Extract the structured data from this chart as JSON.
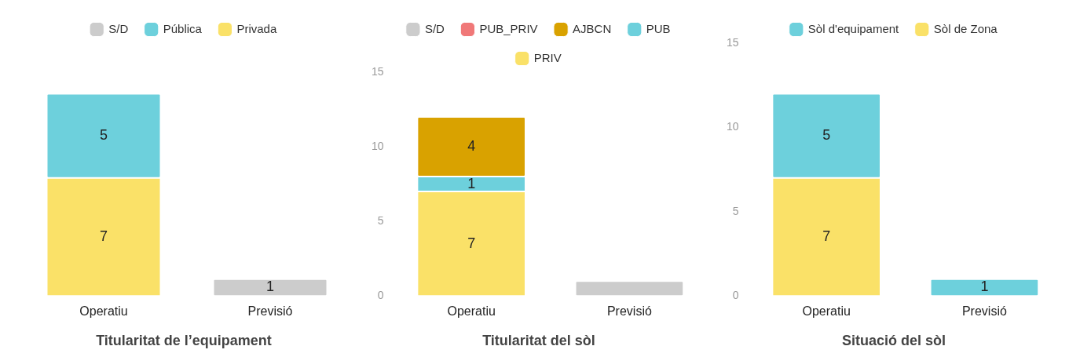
{
  "chart_data": [
    {
      "type": "bar",
      "title": "Titularitat de l’equipament",
      "categories": [
        "Operatiu",
        "Previsió"
      ],
      "stacked": true,
      "ylim": [
        0,
        15
      ],
      "tick_labels": "x",
      "grid": false,
      "legend": "top",
      "series": [
        {
          "name": "Privada",
          "color": "#fae168",
          "values": [
            7,
            null
          ],
          "value_labels": [
            "7",
            null
          ]
        },
        {
          "name": "Pública",
          "color": "#6dd0dc",
          "values": [
            5,
            null
          ],
          "value_labels": [
            "5",
            null
          ]
        },
        {
          "name": "S/D",
          "color": "#cccccc",
          "values": [
            null,
            1
          ],
          "value_labels": [
            null,
            "1"
          ]
        }
      ]
    },
    {
      "type": "bar",
      "title": "Titularitat del sòl",
      "categories": [
        "Operatiu",
        "Previsió"
      ],
      "stacked": true,
      "ylim": [
        0,
        15
      ],
      "yticks": [
        0,
        5,
        10,
        15
      ],
      "grid": false,
      "legend": "top",
      "series": [
        {
          "name": "PRIV",
          "color": "#fae168",
          "values": [
            7,
            null
          ],
          "value_labels": [
            "7",
            null
          ]
        },
        {
          "name": "PUB",
          "color": "#6dd0dc",
          "values": [
            1,
            null
          ],
          "value_labels": [
            "1",
            null
          ]
        },
        {
          "name": "AJBCN",
          "color": "#d9a200",
          "values": [
            4,
            null
          ],
          "value_labels": [
            "4",
            null
          ]
        },
        {
          "name": "PUB_PRIV",
          "color": "#f07878",
          "values": [
            null,
            null
          ]
        },
        {
          "name": "S/D",
          "color": "#cccccc",
          "values": [
            null,
            1
          ],
          "value_labels": [
            null,
            null
          ]
        }
      ]
    },
    {
      "type": "bar",
      "title": "Situació del sòl",
      "categories": [
        "Operatiu",
        "Previsió"
      ],
      "stacked": true,
      "ylim": [
        0,
        15
      ],
      "yticks": [
        0,
        5,
        10,
        15
      ],
      "grid": false,
      "legend": "top",
      "series": [
        {
          "name": "Sòl de Zona",
          "color": "#fae168",
          "values": [
            7,
            null
          ],
          "value_labels": [
            "7",
            null
          ]
        },
        {
          "name": "Sòl d'equipament",
          "color": "#6dd0dc",
          "values": [
            5,
            1
          ],
          "value_labels": [
            "5",
            "1"
          ]
        }
      ]
    }
  ]
}
